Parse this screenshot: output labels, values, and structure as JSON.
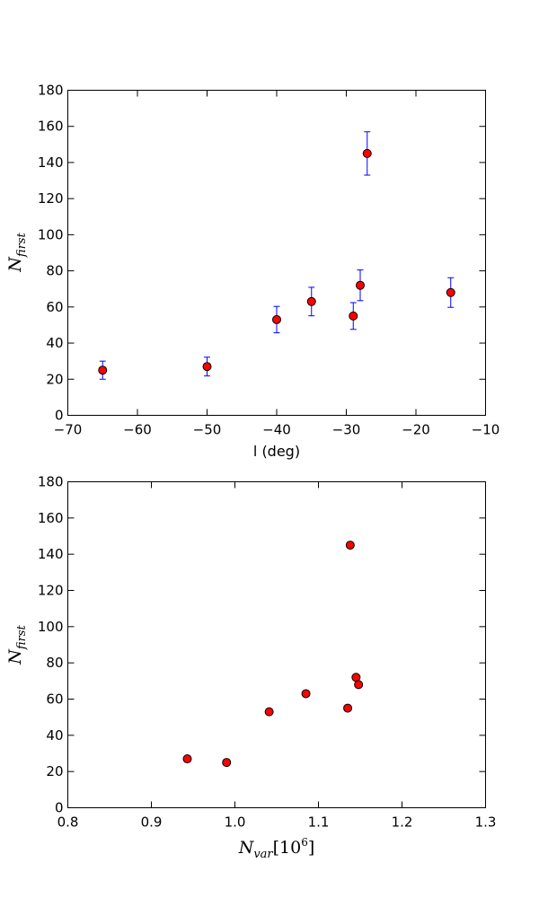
{
  "colors": {
    "marker_fill": "#ff0000",
    "marker_edge": "#000000",
    "errorbar": "#0000ff",
    "axes": "#000000",
    "background": "#ffffff"
  },
  "chart_data": [
    {
      "type": "scatter",
      "title": "",
      "xlabel": "l (deg)",
      "ylabel": "N_first",
      "ylabel_parts": {
        "base": "N",
        "sub": "first"
      },
      "xlim": [
        -70,
        -10
      ],
      "ylim": [
        0,
        180
      ],
      "xticks": [
        -70,
        -60,
        -50,
        -40,
        -30,
        -20,
        -10
      ],
      "xtick_labels": [
        "−70",
        "−60",
        "−50",
        "−40",
        "−30",
        "−20",
        "−10"
      ],
      "yticks": [
        0,
        20,
        40,
        60,
        80,
        100,
        120,
        140,
        160,
        180
      ],
      "ytick_labels": [
        "0",
        "20",
        "40",
        "60",
        "80",
        "100",
        "120",
        "140",
        "160",
        "180"
      ],
      "grid": false,
      "error_bars": true,
      "points": [
        {
          "x": -65,
          "y": 25,
          "err": 5
        },
        {
          "x": -50,
          "y": 27,
          "err": 5.2
        },
        {
          "x": -40,
          "y": 53,
          "err": 7.3
        },
        {
          "x": -35,
          "y": 63,
          "err": 7.9
        },
        {
          "x": -29,
          "y": 55,
          "err": 7.4
        },
        {
          "x": -28,
          "y": 72,
          "err": 8.5
        },
        {
          "x": -27,
          "y": 145,
          "err": 12
        },
        {
          "x": -15,
          "y": 68,
          "err": 8.2
        }
      ]
    },
    {
      "type": "scatter",
      "title": "",
      "xlabel": "N_var[10^6]",
      "xlabel_parts": {
        "base": "N",
        "sub": "var",
        "bracket": "[10",
        "sup": "6",
        "close": "]"
      },
      "ylabel": "N_first",
      "ylabel_parts": {
        "base": "N",
        "sub": "first"
      },
      "xlim": [
        0.8,
        1.3
      ],
      "ylim": [
        0,
        180
      ],
      "xticks": [
        0.8,
        0.9,
        1.0,
        1.1,
        1.2,
        1.3
      ],
      "xtick_labels": [
        "0.8",
        "0.9",
        "1.0",
        "1.1",
        "1.2",
        "1.3"
      ],
      "yticks": [
        0,
        20,
        40,
        60,
        80,
        100,
        120,
        140,
        160,
        180
      ],
      "ytick_labels": [
        "0",
        "20",
        "40",
        "60",
        "80",
        "100",
        "120",
        "140",
        "160",
        "180"
      ],
      "grid": false,
      "error_bars": false,
      "points": [
        {
          "x": 0.943,
          "y": 27
        },
        {
          "x": 0.99,
          "y": 25
        },
        {
          "x": 1.041,
          "y": 53
        },
        {
          "x": 1.085,
          "y": 63
        },
        {
          "x": 1.135,
          "y": 55
        },
        {
          "x": 1.138,
          "y": 145
        },
        {
          "x": 1.145,
          "y": 72
        },
        {
          "x": 1.148,
          "y": 68
        }
      ]
    }
  ]
}
